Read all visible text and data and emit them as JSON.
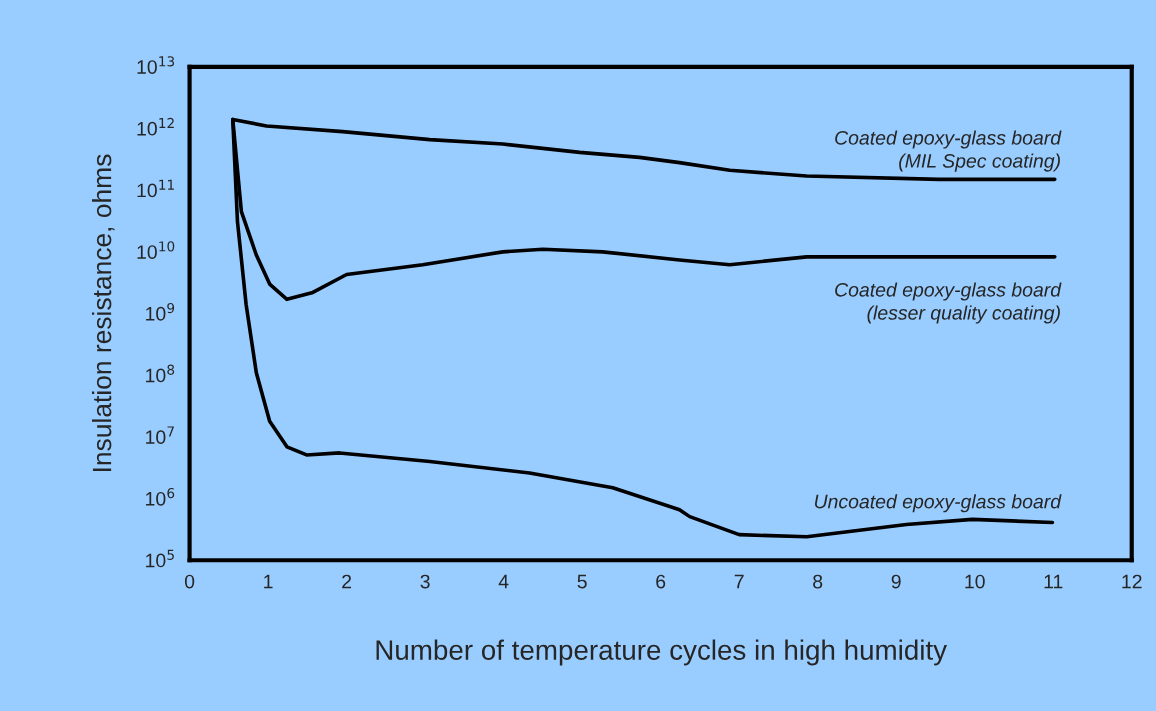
{
  "chart_data": {
    "type": "line",
    "xlabel": "Number of temperature cycles in high humidity",
    "ylabel": "Insulation resistance, ohms",
    "log": "y",
    "xlim": [
      0,
      12
    ],
    "xticks": [
      0,
      1,
      2,
      3,
      4,
      5,
      6,
      7,
      8,
      9,
      10,
      11,
      12
    ],
    "ylim": [
      100000.0,
      10000000000000.0
    ],
    "yticks": [
      {
        "value": 100000.0,
        "label": "10$^{5}$"
      },
      {
        "value": 1000000.0,
        "label": "10$^{6}$"
      },
      {
        "value": 10000000.0,
        "label": "10$^{7}$"
      },
      {
        "value": 100000000.0,
        "label": "10$^{8}$"
      },
      {
        "value": 1000000000.0,
        "label": "10$^{9}$"
      },
      {
        "value": 10000000000.0,
        "label": "10$^{10}$"
      },
      {
        "value": 100000000000.0,
        "label": "10$^{11}$"
      },
      {
        "value": 1000000000000.0,
        "label": "10$^{12}$"
      },
      {
        "value": 10000000000000.0,
        "label": "10$^{13}$"
      }
    ],
    "grid": false,
    "legend": false,
    "marker": "none",
    "line_style": "solid",
    "series": [
      {
        "name": "Coated epoxy-glass board\n(MIL Spec coating)",
        "color": "#000000",
        "x": [
          0.55,
          0.98,
          1.95,
          3.06,
          3.99,
          4.97,
          5.73,
          6.24,
          6.88,
          7.86,
          9.55,
          11.02
        ],
        "values": [
          1400000000000.0,
          1100000000000.0,
          890000000000.0,
          660000000000.0,
          560000000000.0,
          410000000000.0,
          340000000000.0,
          280000000000.0,
          210000000000.0,
          170000000000.0,
          150000000000.0,
          150000000000.0
        ]
      },
      {
        "name": "Coated epoxy-glass board\n(lesser quality coating)",
        "color": "#000000",
        "x": [
          0.55,
          0.66,
          0.85,
          1.02,
          1.24,
          1.57,
          2.0,
          2.97,
          3.99,
          4.5,
          5.26,
          6.24,
          6.88,
          7.86,
          11.02
        ],
        "values": [
          1400000000000.0,
          45000000000.0,
          8900000000.0,
          3000000000.0,
          1700000000.0,
          2200000000.0,
          4300000000.0,
          6200000000.0,
          10000000000.0,
          11000000000.0,
          10000000000.0,
          7400000000.0,
          6200000000.0,
          8300000000.0,
          8300000000.0
        ]
      },
      {
        "name": "Uncoated epoxy-glass board",
        "color": "#000000",
        "x": [
          0.55,
          0.61,
          0.72,
          0.85,
          1.02,
          1.24,
          1.49,
          1.91,
          3.06,
          4.33,
          5.39,
          6.24,
          6.37,
          7.0,
          7.86,
          9.13,
          9.97,
          10.99
        ],
        "values": [
          1400000000000.0,
          31000000000.0,
          1400000000.0,
          110000000.0,
          18000000.0,
          6900000.0,
          5100000.0,
          5500000.0,
          4000000.0,
          2600000.0,
          1500000.0,
          660000.0,
          510000.0,
          260000.0,
          240000.0,
          380000.0,
          460000.0,
          410000.0
        ]
      }
    ]
  }
}
